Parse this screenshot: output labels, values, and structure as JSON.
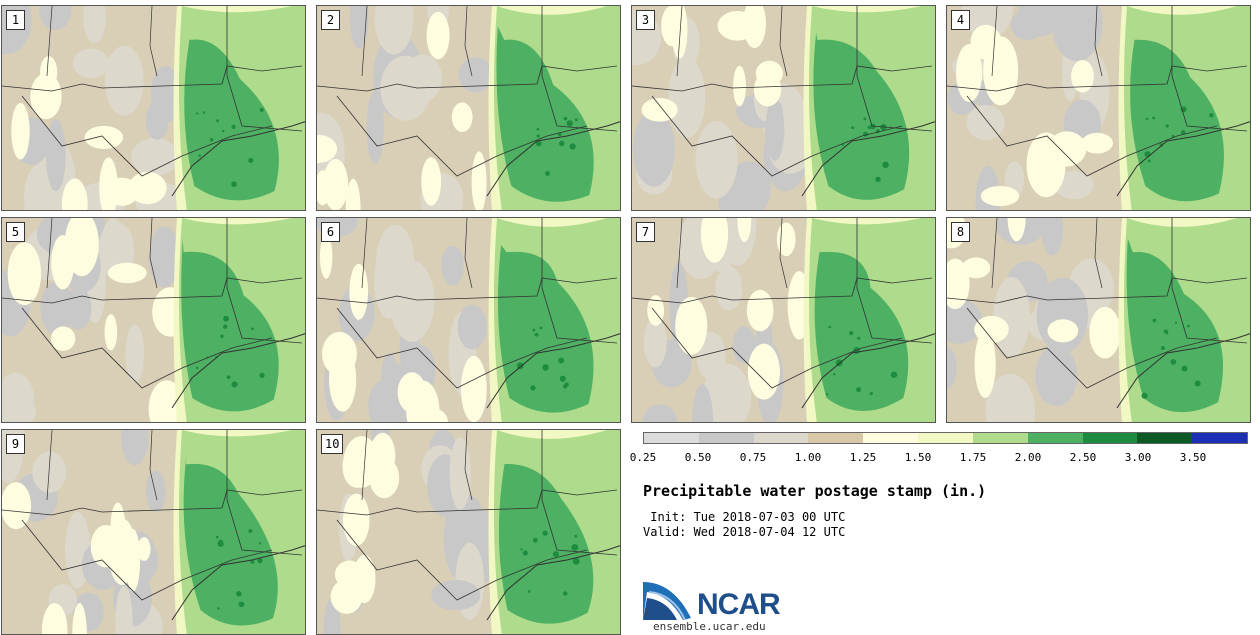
{
  "panels": [
    {
      "label": "1"
    },
    {
      "label": "2"
    },
    {
      "label": "3"
    },
    {
      "label": "4"
    },
    {
      "label": "5"
    },
    {
      "label": "6"
    },
    {
      "label": "7"
    },
    {
      "label": "8"
    },
    {
      "label": "9"
    },
    {
      "label": "10"
    }
  ],
  "colorbar": {
    "colors": [
      "#dcdcdc",
      "#c8c8c8",
      "#dcd8cc",
      "#d9c8a8",
      "#fefde0",
      "#f2f8c4",
      "#aedc8c",
      "#4db062",
      "#1e8c40",
      "#0b5a26",
      "#1d2fb5"
    ],
    "ticks": [
      "0.25",
      "0.50",
      "0.75",
      "1.00",
      "1.25",
      "1.50",
      "1.75",
      "2.00",
      "2.50",
      "3.00",
      "3.50"
    ]
  },
  "title": "Precipitable water postage stamp (in.)",
  "init": " Init: Tue 2018-07-03 00 UTC",
  "valid": "Valid: Wed 2018-07-04 12 UTC",
  "logo": {
    "text": "NCAR",
    "color": "#1f4f8a"
  },
  "site": "ensemble.ucar.edu"
}
